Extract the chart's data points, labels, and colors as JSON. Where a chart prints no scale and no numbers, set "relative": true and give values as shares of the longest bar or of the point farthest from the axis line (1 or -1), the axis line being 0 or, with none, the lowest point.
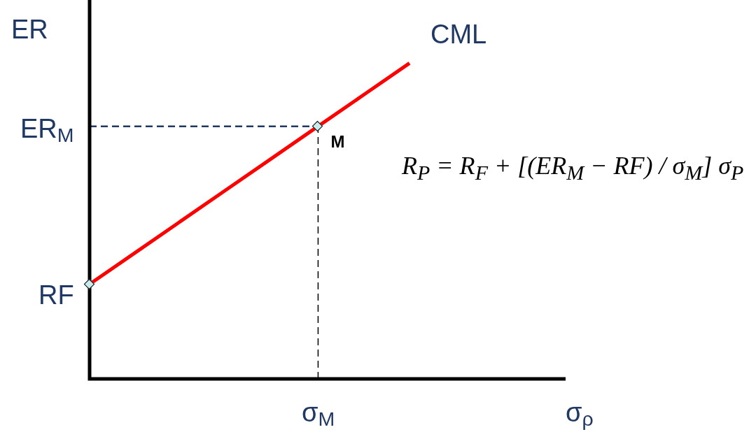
{
  "chart_data": {
    "type": "line",
    "relative": true,
    "ylabel": "ER",
    "categories": [
      null,
      null,
      null,
      null,
      null,
      null,
      null,
      null
    ],
    "series": [
      {
        "type": "line",
        "color": "#ff0000",
        "values": [
          0.3,
          0.4,
          0.5,
          0.6,
          0.7,
          0.8,
          0.9,
          1
        ],
        "marker": "none"
      }
    ],
    "ref_lines": [
      {
        "axis": "y",
        "value": 0.8,
        "label": "ER$_{M}$",
        "line_style": "dashed",
        "color": "#1f3864"
      }
    ],
    "annotations": [
      "RF",
      "M",
      "CML",
      "σ$_{M}$",
      "σ$_{ρ}$",
      "R$_{P}$ = R$_{F}$ + [(ER$_{M}$ − RF) / σ$_{M}$] σ$_{P}$"
    ],
    "legend": false
  }
}
